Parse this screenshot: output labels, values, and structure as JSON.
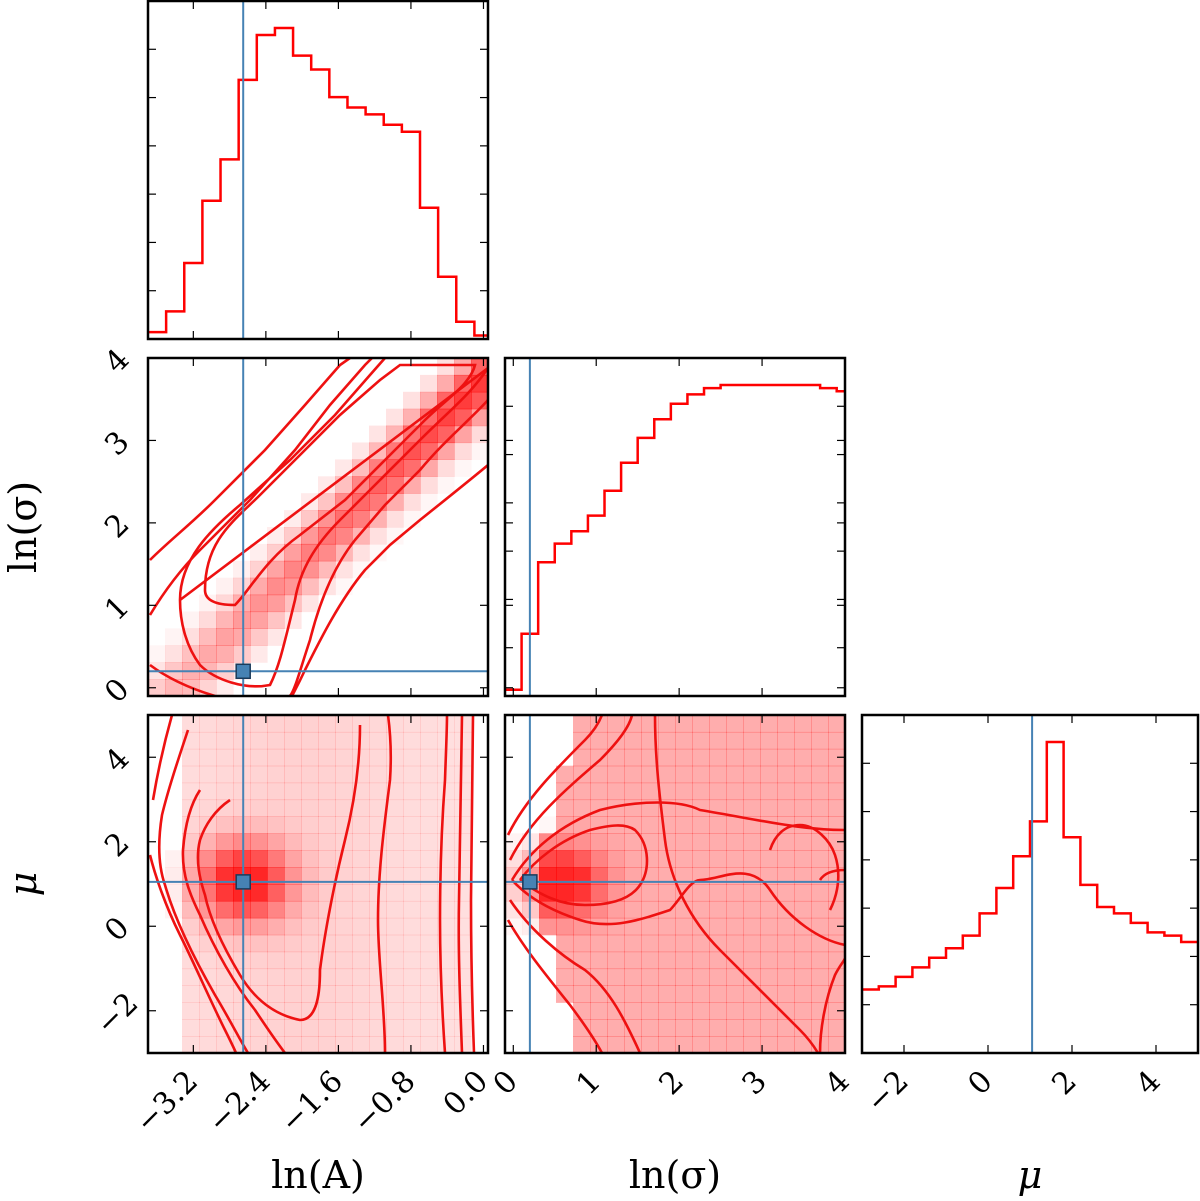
{
  "figure_type": "corner plot",
  "colors": {
    "posterior": "#ff0000",
    "truth": "#4682b4"
  },
  "chart_data": {
    "type": "corner",
    "parameters": [
      {
        "label": "ln(A)",
        "range": [
          -3.7,
          0.05
        ],
        "ticks": [
          -3.2,
          -2.4,
          -1.6,
          -0.8,
          0.0
        ],
        "tick_labels": [
          "−3.2",
          "−2.4",
          "−1.6",
          "−0.8",
          "0.0"
        ]
      },
      {
        "label": "ln(σ)",
        "range": [
          -0.1,
          4.0
        ],
        "ticks": [
          0,
          1,
          2,
          3,
          4
        ],
        "tick_labels": [
          "0",
          "1",
          "2",
          "3",
          "4"
        ]
      },
      {
        "label": "μ",
        "range": [
          -3.0,
          5.0
        ],
        "ticks": [
          -2,
          0,
          2,
          4
        ],
        "tick_labels": [
          "−2",
          "0",
          "2",
          "4"
        ]
      }
    ],
    "truths": [
      -2.65,
      0.2,
      1.05
    ],
    "marginals": [
      {
        "param": "ln(A)",
        "bin_edges": [
          -3.7,
          -3.5,
          -3.3,
          -3.1,
          -2.9,
          -2.7,
          -2.5,
          -2.3,
          -2.1,
          -1.9,
          -1.7,
          -1.5,
          -1.3,
          -1.1,
          -0.9,
          -0.7,
          -0.5,
          -0.3,
          -0.1,
          0.05
        ],
        "counts": [
          0.02,
          0.08,
          0.22,
          0.4,
          0.52,
          0.75,
          0.88,
          0.9,
          0.82,
          0.78,
          0.7,
          0.67,
          0.65,
          0.62,
          0.6,
          0.38,
          0.18,
          0.05,
          0.01
        ]
      },
      {
        "param": "ln(σ)",
        "bin_edges": [
          -0.1,
          0.1,
          0.3,
          0.5,
          0.7,
          0.9,
          1.1,
          1.3,
          1.5,
          1.7,
          1.9,
          2.1,
          2.3,
          2.5,
          2.7,
          2.9,
          3.1,
          3.3,
          3.5,
          3.7,
          3.9,
          4.0
        ],
        "counts": [
          0.02,
          0.2,
          0.43,
          0.49,
          0.53,
          0.58,
          0.66,
          0.75,
          0.83,
          0.89,
          0.94,
          0.97,
          0.99,
          1.0,
          1.0,
          1.0,
          1.0,
          1.0,
          1.0,
          0.99,
          0.98
        ]
      },
      {
        "param": "μ",
        "bin_edges": [
          -3.0,
          -2.6,
          -2.2,
          -1.8,
          -1.4,
          -1.0,
          -0.6,
          -0.2,
          0.2,
          0.6,
          1.0,
          1.4,
          1.8,
          2.2,
          2.6,
          3.0,
          3.4,
          3.8,
          4.2,
          4.6,
          5.0
        ],
        "counts": [
          0.2,
          0.21,
          0.24,
          0.27,
          0.3,
          0.33,
          0.37,
          0.44,
          0.52,
          0.62,
          0.73,
          0.98,
          0.68,
          0.53,
          0.46,
          0.44,
          0.41,
          0.38,
          0.37,
          0.35
        ]
      }
    ]
  }
}
